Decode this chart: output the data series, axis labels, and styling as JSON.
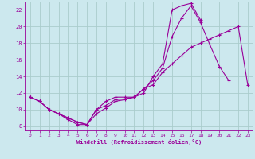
{
  "background_color": "#cce8ee",
  "grid_color": "#aacccc",
  "line_color": "#990099",
  "xlabel": "Windchill (Refroidissement éolien,°C)",
  "xlim": [
    -0.5,
    23.5
  ],
  "ylim": [
    7.5,
    23.0
  ],
  "xticks": [
    0,
    1,
    2,
    3,
    4,
    5,
    6,
    7,
    8,
    9,
    10,
    11,
    12,
    13,
    14,
    15,
    16,
    17,
    18,
    19,
    20,
    21,
    22,
    23
  ],
  "yticks": [
    8,
    10,
    12,
    14,
    16,
    18,
    20,
    22
  ],
  "series": [
    {
      "x": [
        0,
        1,
        2,
        3,
        4,
        5,
        6,
        7,
        8,
        9,
        10,
        11,
        12,
        13,
        14,
        15,
        16,
        17,
        18,
        19,
        20,
        21,
        22,
        23
      ],
      "y": [
        11.5,
        11.0,
        10.0,
        9.5,
        9.0,
        8.5,
        8.2,
        10.0,
        11.0,
        11.5,
        11.5,
        11.5,
        12.5,
        13.0,
        14.5,
        15.5,
        16.5,
        17.5,
        18.0,
        18.5,
        19.0,
        19.5,
        20.0,
        13.0
      ]
    },
    {
      "x": [
        0,
        1,
        2,
        3,
        4,
        5,
        6,
        7,
        8,
        9,
        10,
        11,
        12,
        13,
        14,
        15,
        16,
        17,
        18,
        19,
        20,
        21,
        22
      ],
      "y": [
        11.5,
        11.0,
        10.0,
        9.5,
        8.8,
        8.2,
        8.2,
        9.5,
        10.2,
        11.0,
        11.2,
        11.5,
        12.5,
        13.5,
        15.0,
        18.8,
        21.0,
        22.5,
        20.5,
        17.8,
        15.2,
        13.5,
        null
      ]
    },
    {
      "x": [
        0,
        1,
        2,
        3,
        4,
        5,
        6,
        7,
        8,
        9,
        10,
        11,
        12,
        13,
        14,
        15,
        16,
        17,
        18
      ],
      "y": [
        11.5,
        11.0,
        10.0,
        9.5,
        9.0,
        8.5,
        8.2,
        10.0,
        10.5,
        11.2,
        11.3,
        11.5,
        12.0,
        14.0,
        15.5,
        22.0,
        22.5,
        22.8,
        20.8
      ]
    }
  ]
}
